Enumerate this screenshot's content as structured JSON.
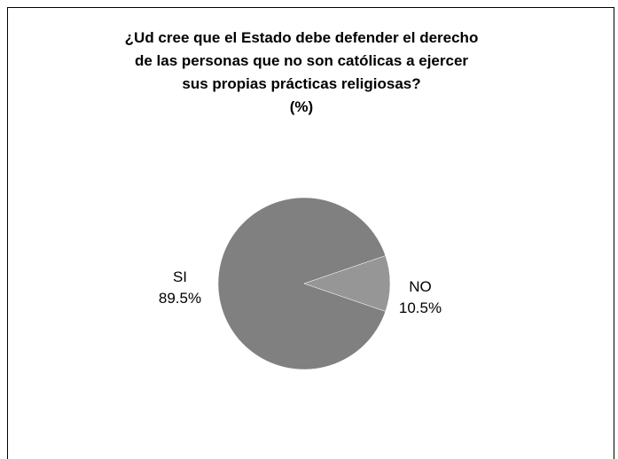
{
  "chart_data": {
    "type": "pie",
    "title_lines": [
      "¿Ud cree que el Estado debe defender el derecho",
      "de las personas que no son católicas a ejercer",
      "sus propias prácticas religiosas?",
      "(%)"
    ],
    "slices": [
      {
        "label": "SI",
        "value": 89.5,
        "value_label": "89.5%",
        "color": "#808080"
      },
      {
        "label": "NO",
        "value": 10.5,
        "value_label": "10.5%",
        "color": "#969696"
      }
    ]
  }
}
